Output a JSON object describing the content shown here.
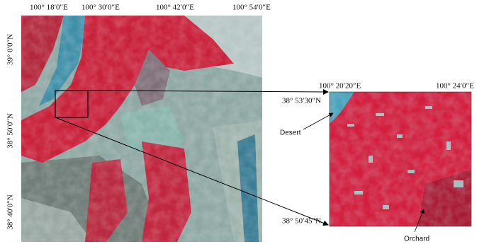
{
  "main_map": {
    "longitude_labels": [
      "100° 18′0″E",
      "100° 30′0″E",
      "100° 42′0″E",
      "100° 54′0″E"
    ],
    "latitude_labels": [
      "39° 0′0″N",
      "38° 50′0″N",
      "38° 40′0″N"
    ]
  },
  "inset_map": {
    "longitude_labels": [
      "100° 20′20″E",
      "100° 24′0″E"
    ],
    "latitude_labels": [
      "38° 53′30″N",
      "38° 50′45″N"
    ],
    "annotations": [
      "Desert",
      "Orchard"
    ]
  }
}
